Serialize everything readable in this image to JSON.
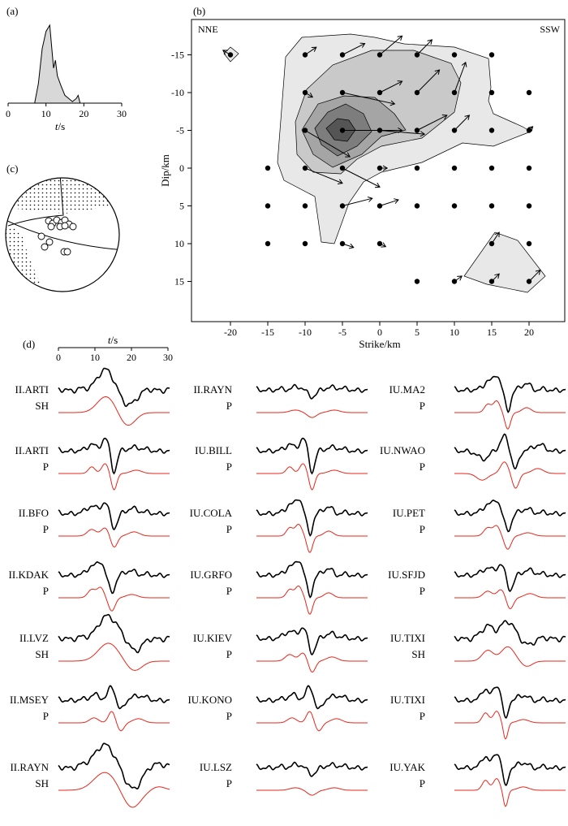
{
  "colors": {
    "black": "#000000",
    "synthetic": "#e8261b",
    "fill_light": "#e8e8e8",
    "fill_mid": "#c9c9c9",
    "fill_dark": "#a5a5a5",
    "fill_darker": "#7d7d7d",
    "fill_darkest": "#555555"
  },
  "panels": {
    "a": {
      "label": "(a)",
      "title_note": "source time function",
      "xlabel_var": "t",
      "xlabel_unit": "/s",
      "chart_data": {
        "type": "area",
        "x": [
          0,
          7,
          8,
          9,
          10,
          11,
          12,
          12.5,
          13,
          14,
          15,
          16,
          17,
          18,
          18.5,
          19,
          20,
          30
        ],
        "values": [
          0,
          0,
          0.25,
          0.7,
          0.92,
          1.0,
          0.45,
          0.55,
          0.35,
          0.22,
          0.1,
          0.06,
          0.02,
          0.06,
          0.1,
          0.0,
          0,
          0
        ],
        "xlim": [
          0,
          30
        ],
        "ticks": [
          "0",
          "10",
          "20",
          "30"
        ]
      }
    },
    "b": {
      "label": "(b)",
      "left_dir": "NNE",
      "right_dir": "SSW",
      "xlabel": "Strike/km",
      "ylabel": "Dip/km",
      "chart_data": {
        "type": "scatter",
        "xlim": [
          -25,
          25
        ],
        "ylim": [
          -17.5,
          17.5
        ],
        "xticks": [
          "-20",
          "-15",
          "-10",
          "-5",
          "0",
          "5",
          "10",
          "15",
          "20"
        ],
        "yticks": [
          "-15",
          "-10",
          "-5",
          "0",
          "5",
          "10",
          "15"
        ],
        "grid_points": [
          [
            -20,
            -15
          ],
          [
            -10,
            -15
          ],
          [
            -5,
            -15
          ],
          [
            0,
            -15
          ],
          [
            5,
            -15
          ],
          [
            10,
            -15
          ],
          [
            15,
            -15
          ],
          [
            -10,
            -10
          ],
          [
            -5,
            -10
          ],
          [
            0,
            -10
          ],
          [
            5,
            -10
          ],
          [
            10,
            -10
          ],
          [
            15,
            -10
          ],
          [
            20,
            -10
          ],
          [
            -10,
            -5
          ],
          [
            -5,
            -5
          ],
          [
            0,
            -5
          ],
          [
            5,
            -5
          ],
          [
            10,
            -5
          ],
          [
            15,
            -5
          ],
          [
            20,
            -5
          ],
          [
            -15,
            0
          ],
          [
            -10,
            0
          ],
          [
            -5,
            0
          ],
          [
            0,
            0
          ],
          [
            5,
            0
          ],
          [
            10,
            0
          ],
          [
            15,
            0
          ],
          [
            20,
            0
          ],
          [
            -15,
            5
          ],
          [
            -10,
            5
          ],
          [
            -5,
            5
          ],
          [
            0,
            5
          ],
          [
            5,
            5
          ],
          [
            10,
            5
          ],
          [
            15,
            5
          ],
          [
            20,
            5
          ],
          [
            -15,
            10
          ],
          [
            -10,
            10
          ],
          [
            -5,
            10
          ],
          [
            0,
            10
          ],
          [
            15,
            10
          ],
          [
            20,
            10
          ],
          [
            5,
            15
          ],
          [
            10,
            15
          ],
          [
            15,
            15
          ],
          [
            20,
            15
          ]
        ],
        "slip_vectors": [
          [
            -20,
            -15,
            -1,
            -0.6
          ],
          [
            -10,
            -15,
            1.5,
            -1
          ],
          [
            -5,
            -15,
            3,
            -1.5
          ],
          [
            0,
            -15,
            3,
            -2.5
          ],
          [
            5,
            -15,
            2,
            -2
          ],
          [
            -10,
            -10,
            1,
            0.6
          ],
          [
            -5,
            -10,
            7,
            1.5
          ],
          [
            0,
            -10,
            3,
            -1.5
          ],
          [
            5,
            -10,
            3,
            -3
          ],
          [
            10,
            -10,
            1.5,
            -4
          ],
          [
            -10,
            -5,
            6,
            3.5
          ],
          [
            -5,
            -5,
            8,
            0
          ],
          [
            0,
            -5,
            6,
            0.5
          ],
          [
            5,
            -5,
            4,
            -2
          ],
          [
            10,
            -5,
            2,
            -2
          ],
          [
            20,
            -5,
            0.5,
            -0.5
          ],
          [
            -10,
            0,
            5,
            2
          ],
          [
            -5,
            0,
            5,
            2.5
          ],
          [
            0,
            0,
            1,
            0
          ],
          [
            -5,
            5,
            4,
            -1
          ],
          [
            0,
            5,
            2.5,
            -0.8
          ],
          [
            -5,
            10,
            1.5,
            0.5
          ],
          [
            0,
            10,
            0.8,
            0.4
          ],
          [
            10,
            15,
            1,
            -0.7
          ],
          [
            15,
            15,
            1,
            -1
          ],
          [
            20,
            15,
            1.5,
            -1.5
          ],
          [
            15,
            10,
            1,
            -1.5
          ]
        ],
        "contour_levels": 5
      }
    },
    "c": {
      "label": "(c)",
      "note": "focal mechanism beachball"
    },
    "d": {
      "label": "(d)",
      "axis_var": "t",
      "axis_unit": "/s",
      "axis_ticks": [
        "0",
        "10",
        "20",
        "30"
      ],
      "columns": [
        [
          {
            "station": "II.ARTI",
            "phase": "SH",
            "kind": "sh1"
          },
          {
            "station": "II.ARTI",
            "phase": "P",
            "kind": "p1"
          },
          {
            "station": "II.BFO",
            "phase": "P",
            "kind": "p2"
          },
          {
            "station": "II.KDAK",
            "phase": "P",
            "kind": "p3"
          },
          {
            "station": "II.LVZ",
            "phase": "SH",
            "kind": "sh2"
          },
          {
            "station": "II.MSEY",
            "phase": "P",
            "kind": "p4"
          },
          {
            "station": "II.RAYN",
            "phase": "SH",
            "kind": "sh3"
          }
        ],
        [
          {
            "station": "II.RAYN",
            "phase": "P",
            "kind": "p5"
          },
          {
            "station": "IU.BILL",
            "phase": "P",
            "kind": "p1"
          },
          {
            "station": "IU.COLA",
            "phase": "P",
            "kind": "p6"
          },
          {
            "station": "IU.GRFO",
            "phase": "P",
            "kind": "p6"
          },
          {
            "station": "IU.KIEV",
            "phase": "P",
            "kind": "p2"
          },
          {
            "station": "IU.KONO",
            "phase": "P",
            "kind": "p4"
          },
          {
            "station": "IU.LSZ",
            "phase": "P",
            "kind": "p5"
          }
        ],
        [
          {
            "station": "IU.MA2",
            "phase": "P",
            "kind": "p6"
          },
          {
            "station": "IU.NWAO",
            "phase": "P",
            "kind": "p7"
          },
          {
            "station": "IU.PET",
            "phase": "P",
            "kind": "p3"
          },
          {
            "station": "IU.SFJD",
            "phase": "P",
            "kind": "p2"
          },
          {
            "station": "IU.TIXI",
            "phase": "SH",
            "kind": "sh4"
          },
          {
            "station": "IU.TIXI",
            "phase": "P",
            "kind": "p8"
          },
          {
            "station": "IU.YAK",
            "phase": "P",
            "kind": "p8"
          }
        ]
      ]
    }
  }
}
